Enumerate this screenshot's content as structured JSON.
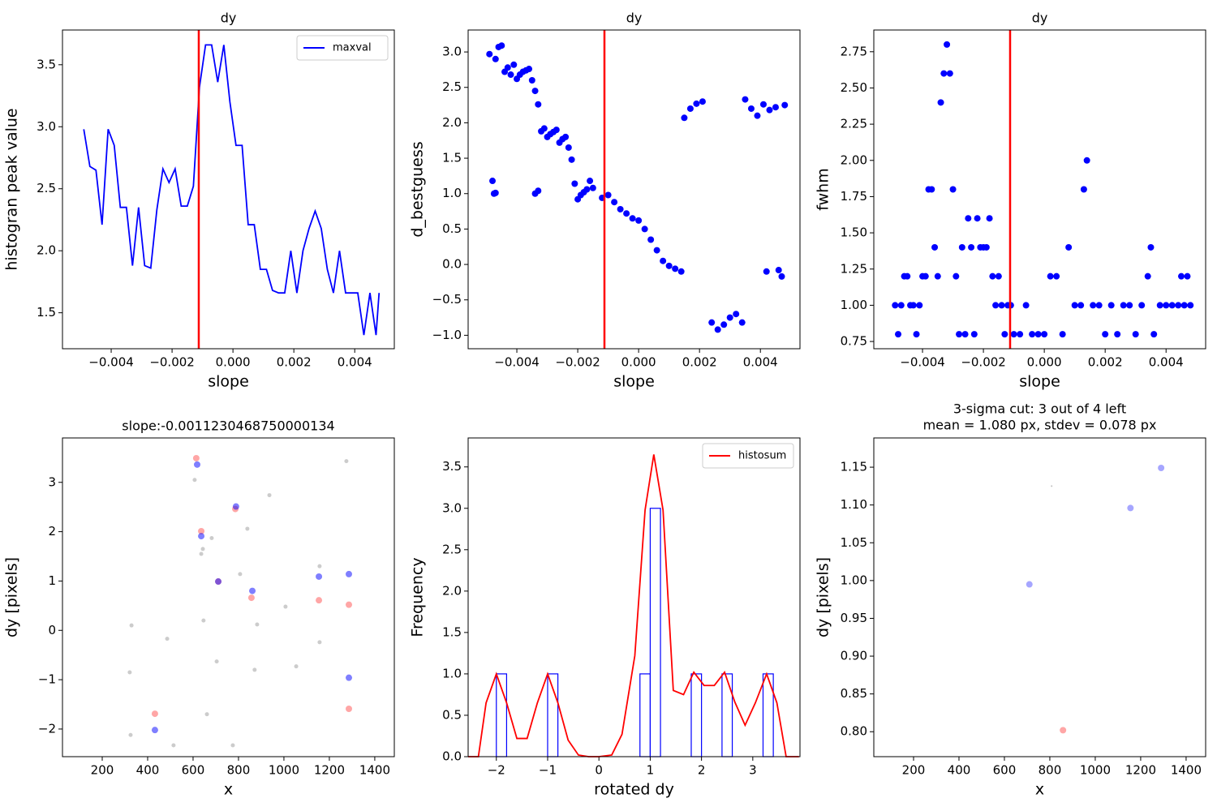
{
  "chart_data": [
    {
      "type": "line",
      "title": "dy",
      "xlabel": "slope",
      "ylabel": "histogran peak value",
      "xlim": [
        -0.0056,
        0.0053
      ],
      "ylim": [
        1.21,
        3.78
      ],
      "xticks": [
        {
          "value": -0.004,
          "label": "−0.004"
        },
        {
          "value": -0.002,
          "label": "−0.002"
        },
        {
          "value": 0,
          "label": "0.000"
        },
        0.002,
        0.004
      ],
      "yticks": [
        1.5,
        {
          "value": 2,
          "label": "2.0"
        },
        2.5,
        {
          "value": 3,
          "label": "3.0"
        },
        3.5
      ],
      "vline": -0.0011230468750000134,
      "vline_color": "#ff0000",
      "legend": "upper right",
      "series": [
        {
          "name": "maxval",
          "color": "#0000ff",
          "x": [
            -0.0049,
            -0.0047,
            -0.0045,
            -0.0043,
            -0.0041,
            -0.0039,
            -0.0037,
            -0.0035,
            -0.0033,
            -0.0031,
            -0.0029,
            -0.0027,
            -0.0025,
            -0.0023,
            -0.0021,
            -0.0019,
            -0.0017,
            -0.0015,
            -0.0013,
            -0.0011,
            -0.0009,
            -0.0007,
            -0.0005,
            -0.0003,
            -0.0001,
            0.0001,
            0.0003,
            0.0005,
            0.0007,
            0.0009,
            0.0011,
            0.0013,
            0.0015,
            0.0017,
            0.0019,
            0.0021,
            0.0023,
            0.0025,
            0.0027,
            0.0029,
            0.0031,
            0.0033,
            0.0035,
            0.0037,
            0.0039,
            0.0041,
            0.0043,
            0.0045,
            0.0047,
            0.0048
          ],
          "values": [
            2.98,
            2.68,
            2.65,
            2.21,
            2.98,
            2.85,
            2.35,
            2.35,
            1.88,
            2.35,
            1.88,
            1.86,
            2.33,
            2.66,
            2.55,
            2.66,
            2.36,
            2.36,
            2.52,
            3.32,
            3.66,
            3.66,
            3.36,
            3.66,
            3.2,
            2.85,
            2.85,
            2.21,
            2.21,
            1.85,
            1.85,
            1.68,
            1.66,
            1.66,
            2.0,
            1.66,
            2.0,
            2.18,
            2.32,
            2.18,
            1.85,
            1.66,
            2.0,
            1.66,
            1.66,
            1.66,
            1.32,
            1.66,
            1.32,
            1.66
          ]
        }
      ]
    },
    {
      "type": "scatter",
      "title": "dy",
      "xlabel": "slope",
      "ylabel": "d_bestguess",
      "xlim": [
        -0.0056,
        0.0053
      ],
      "ylim": [
        -1.19,
        3.31
      ],
      "xticks": [
        {
          "value": -0.004,
          "label": "−0.004"
        },
        {
          "value": -0.002,
          "label": "−0.002"
        },
        {
          "value": 0,
          "label": "0.000"
        },
        0.002,
        0.004
      ],
      "yticks": [
        {
          "value": -1,
          "label": "−1.0"
        },
        {
          "value": -0.5,
          "label": "−0.5"
        },
        {
          "value": 0,
          "label": "0.0"
        },
        0.5,
        {
          "value": 1,
          "label": "1.0"
        },
        1.5,
        {
          "value": 2,
          "label": "2.0"
        },
        2.5,
        {
          "value": 3,
          "label": "3.0"
        }
      ],
      "vline": -0.0011230468750000134,
      "vline_color": "#ff0000",
      "series": [
        {
          "color": "#0000ff",
          "alpha": 1,
          "marker_size": 4,
          "x": [
            -0.0049,
            -0.0048,
            -0.00475,
            -0.0047,
            -0.0047,
            -0.0046,
            -0.0045,
            -0.0044,
            -0.0043,
            -0.0042,
            -0.0041,
            -0.004,
            -0.0039,
            -0.0038,
            -0.0037,
            -0.0036,
            -0.0035,
            -0.0034,
            -0.0033,
            -0.0034,
            -0.0033,
            -0.0032,
            -0.0031,
            -0.003,
            -0.0029,
            -0.0028,
            -0.0027,
            -0.0026,
            -0.0025,
            -0.0024,
            -0.0023,
            -0.0022,
            -0.0021,
            -0.002,
            -0.0019,
            -0.0018,
            -0.0017,
            -0.0016,
            -0.0015,
            -0.0012,
            -0.001,
            -0.0008,
            -0.0006,
            -0.0004,
            -0.0002,
            0,
            0.0002,
            0.0004,
            0.0006,
            0.0008,
            0.001,
            0.0012,
            0.0014,
            0.0015,
            0.0017,
            0.0019,
            0.0021,
            0.0024,
            0.0026,
            0.0028,
            0.003,
            0.0032,
            0.0034,
            0.0035,
            0.0037,
            0.0039,
            0.0041,
            0.0042,
            0.0043,
            0.0045,
            0.0046,
            0.0047,
            0.0048
          ],
          "values": [
            2.97,
            1.18,
            1.0,
            1.01,
            2.9,
            3.07,
            3.09,
            2.72,
            2.78,
            2.68,
            2.82,
            2.62,
            2.68,
            2.72,
            2.74,
            2.76,
            2.6,
            1.0,
            1.04,
            2.45,
            2.26,
            1.88,
            1.92,
            1.8,
            1.84,
            1.87,
            1.9,
            1.72,
            1.77,
            1.8,
            1.65,
            1.48,
            1.14,
            0.92,
            0.98,
            1.02,
            1.06,
            1.18,
            1.08,
            0.94,
            0.98,
            0.88,
            0.78,
            0.72,
            0.65,
            0.62,
            0.5,
            0.35,
            0.2,
            0.05,
            -0.02,
            -0.06,
            -0.1,
            2.07,
            2.2,
            2.27,
            2.3,
            -0.82,
            -0.92,
            -0.85,
            -0.75,
            -0.7,
            -0.82,
            2.33,
            2.2,
            2.1,
            2.26,
            -0.1,
            2.18,
            2.22,
            -0.08,
            -0.17,
            2.25
          ]
        }
      ]
    },
    {
      "type": "scatter",
      "title": "dy",
      "xlabel": "slope",
      "ylabel": "fwhm",
      "xlim": [
        -0.0056,
        0.0053
      ],
      "ylim": [
        0.7,
        2.9
      ],
      "xticks": [
        {
          "value": -0.004,
          "label": "−0.004"
        },
        {
          "value": -0.002,
          "label": "−0.002"
        },
        {
          "value": 0,
          "label": "0.000"
        },
        0.002,
        0.004
      ],
      "yticks": [
        0.75,
        {
          "value": 1,
          "label": "1.00"
        },
        1.25,
        {
          "value": 1.5,
          "label": "1.50"
        },
        1.75,
        {
          "value": 2,
          "label": "2.00"
        },
        2.25,
        {
          "value": 2.5,
          "label": "2.50"
        },
        2.75
      ],
      "vline": -0.0011230468750000134,
      "vline_color": "#ff0000",
      "series": [
        {
          "color": "#0000ff",
          "alpha": 1,
          "marker_size": 4,
          "x": [
            -0.0049,
            -0.0048,
            -0.0047,
            -0.0046,
            -0.0045,
            -0.0044,
            -0.0043,
            -0.0042,
            -0.0041,
            -0.004,
            -0.0039,
            -0.0038,
            -0.0037,
            -0.0036,
            -0.0035,
            -0.0034,
            -0.0033,
            -0.0032,
            -0.0031,
            -0.003,
            -0.0029,
            -0.0028,
            -0.0027,
            -0.0026,
            -0.0025,
            -0.0024,
            -0.0023,
            -0.0022,
            -0.0021,
            -0.002,
            -0.0019,
            -0.0018,
            -0.0017,
            -0.0016,
            -0.0015,
            -0.0014,
            -0.0013,
            -0.0012,
            -0.0011,
            -0.001,
            -0.0008,
            -0.0006,
            -0.0004,
            -0.0002,
            0,
            0.0002,
            0.0004,
            0.0006,
            0.0008,
            0.001,
            0.0012,
            0.0013,
            0.0014,
            0.0016,
            0.0018,
            0.002,
            0.0022,
            0.0024,
            0.0026,
            0.0028,
            0.003,
            0.0032,
            0.0034,
            0.0035,
            0.0036,
            0.0038,
            0.004,
            0.0042,
            0.0044,
            0.0045,
            0.0046,
            0.0047,
            0.0048
          ],
          "values": [
            1.0,
            0.8,
            1.0,
            1.2,
            1.2,
            1.0,
            1.0,
            0.8,
            1.0,
            1.2,
            1.2,
            1.8,
            1.8,
            1.4,
            1.2,
            2.4,
            2.6,
            2.8,
            2.6,
            1.8,
            1.2,
            0.8,
            1.4,
            0.8,
            1.6,
            1.4,
            0.8,
            1.6,
            1.4,
            1.4,
            1.4,
            1.6,
            1.2,
            1.0,
            1.2,
            1.0,
            0.8,
            1.0,
            1.0,
            0.8,
            0.8,
            1.0,
            0.8,
            0.8,
            0.8,
            1.2,
            1.2,
            0.8,
            1.4,
            1.0,
            1.0,
            1.8,
            2.0,
            1.0,
            1.0,
            0.8,
            1.0,
            0.8,
            1.0,
            1.0,
            0.8,
            1.0,
            1.2,
            1.4,
            0.8,
            1.0,
            1.0,
            1.0,
            1.0,
            1.2,
            1.0,
            1.2,
            1.0
          ]
        }
      ]
    },
    {
      "type": "scatter",
      "title": "slope:-0.0011230468750000134",
      "xlabel": "x",
      "ylabel": "dy [pixels]",
      "xlim": [
        25,
        1486
      ],
      "ylim": [
        -2.56,
        3.9
      ],
      "xticks": [
        200,
        400,
        600,
        800,
        1000,
        1200,
        1400
      ],
      "yticks": [
        {
          "value": -2,
          "label": "−2"
        },
        {
          "value": -1,
          "label": "−1"
        },
        0,
        1,
        2,
        3
      ],
      "series": [
        {
          "color": "#808080",
          "alpha": 0.4,
          "marker_size": 2.5,
          "x": [
            329,
            321,
            325,
            486,
            514,
            607,
            636,
            643,
            646,
            682,
            704,
            661,
            775,
            807,
            839,
            882,
            871,
            936,
            1007,
            1054,
            1157,
            1157,
            1275
          ],
          "values": [
            0.1,
            -0.85,
            -2.12,
            -0.17,
            -2.33,
            3.05,
            1.55,
            1.65,
            0.2,
            1.87,
            -0.63,
            -1.7,
            -2.33,
            1.14,
            2.06,
            0.12,
            -0.8,
            2.74,
            0.48,
            -0.73,
            1.3,
            -0.24,
            3.43
          ]
        },
        {
          "color": "#ff0000",
          "alpha": 0.35,
          "marker_size": 4,
          "x": [
            614,
            786,
            636,
            711,
            857,
            432,
            1154,
            1286,
            1286
          ],
          "values": [
            3.49,
            2.46,
            2.01,
            0.99,
            0.66,
            -1.69,
            0.61,
            0.52,
            -1.59
          ]
        },
        {
          "color": "#0000ff",
          "alpha": 0.5,
          "marker_size": 4,
          "x": [
            618,
            789,
            636,
            711,
            861,
            432,
            1154,
            1286,
            1286
          ],
          "values": [
            3.36,
            2.51,
            1.91,
            0.99,
            0.8,
            -2.02,
            1.09,
            1.14,
            -0.96
          ]
        }
      ]
    },
    {
      "type": "histogram",
      "xlabel": "rotated dy",
      "ylabel": "Frequency",
      "xlim": [
        -2.55,
        3.92
      ],
      "ylim": [
        0,
        3.85
      ],
      "xticks": [
        {
          "value": -2,
          "label": "−2"
        },
        {
          "value": -1,
          "label": "−1"
        },
        0,
        1,
        2,
        3
      ],
      "yticks": [
        {
          "value": 0,
          "label": "0.0"
        },
        0.5,
        {
          "value": 1,
          "label": "1.0"
        },
        1.5,
        {
          "value": 2,
          "label": "2.0"
        },
        2.5,
        {
          "value": 3,
          "label": "3.0"
        },
        3.5
      ],
      "color": "#0000ff",
      "bins": [
        -2.0,
        -1.8,
        -1.6,
        -1.4,
        -1.2,
        -1.0,
        -0.8,
        -0.6,
        -0.4,
        -0.2,
        0.0,
        0.2,
        0.4,
        0.6,
        0.8,
        1.0,
        1.2,
        1.4,
        1.6,
        1.8,
        2.0,
        2.2,
        2.4,
        2.6,
        2.8,
        3.0,
        3.2,
        3.4
      ],
      "values": [
        1,
        0,
        0,
        0,
        0,
        1,
        0,
        0,
        0,
        0,
        0,
        0,
        0,
        0,
        1,
        3,
        0,
        0,
        0,
        1,
        0,
        0,
        1,
        0,
        0,
        0,
        1
      ],
      "legend": "upper right",
      "series": [
        {
          "name": "histosum",
          "color": "#ff0000",
          "x": [
            -2.55,
            -2.35,
            -2.2,
            -2.0,
            -1.8,
            -1.6,
            -1.4,
            -1.2,
            -1.0,
            -0.8,
            -0.6,
            -0.4,
            -0.2,
            0,
            0.25,
            0.45,
            0.7,
            0.9,
            1.07,
            1.25,
            1.45,
            1.65,
            1.85,
            2.05,
            2.25,
            2.45,
            2.65,
            2.85,
            3.05,
            3.27,
            3.47,
            3.65,
            3.9
          ],
          "values": [
            0,
            0,
            0.65,
            1.0,
            0.65,
            0.22,
            0.22,
            0.65,
            1.0,
            0.65,
            0.2,
            0.02,
            0,
            0,
            0.02,
            0.27,
            1.22,
            2.98,
            3.65,
            2.98,
            0.8,
            0.75,
            1.02,
            0.86,
            0.86,
            1.02,
            0.66,
            0.38,
            0.65,
            1.0,
            0.65,
            0,
            0
          ]
        }
      ]
    },
    {
      "type": "scatter",
      "title": [
        "3-sigma cut: 3 out of 4 left",
        "mean = 1.080 px, stdev = 0.078 px"
      ],
      "xlabel": "x",
      "ylabel": "dy [pixels]",
      "xlim": [
        25,
        1486
      ],
      "ylim": [
        0.767,
        1.1887
      ],
      "xticks": [
        200,
        400,
        600,
        800,
        1000,
        1200,
        1400
      ],
      "yticks": [
        {
          "value": 0.8,
          "label": "0.80"
        },
        0.85,
        {
          "value": 0.9,
          "label": "0.90"
        },
        0.95,
        {
          "value": 1,
          "label": "1.00"
        },
        1.05,
        {
          "value": 1.1,
          "label": "1.10"
        },
        1.15
      ],
      "series": [
        {
          "color": "#808080",
          "alpha": 0.5,
          "marker_size": 1,
          "x": [
            808
          ],
          "values": [
            1.125
          ]
        },
        {
          "color": "#ff0000",
          "alpha": 0.35,
          "marker_size": 4,
          "x": [
            858
          ],
          "values": [
            0.802
          ]
        },
        {
          "color": "#0000ff",
          "alpha": 0.35,
          "marker_size": 4,
          "x": [
            710,
            1155,
            1290
          ],
          "values": [
            0.995,
            1.096,
            1.149
          ]
        }
      ]
    }
  ]
}
